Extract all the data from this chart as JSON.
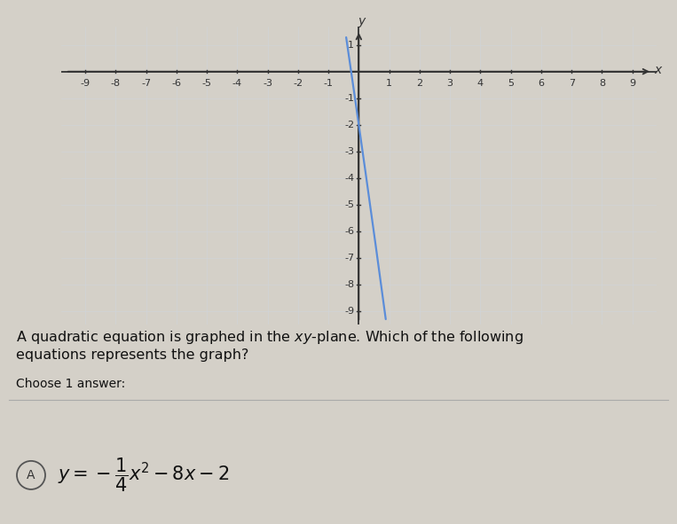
{
  "a": -0.25,
  "b": -8,
  "c": -2,
  "x_min": -9,
  "x_max": 9,
  "y_min": -9,
  "y_max": 1,
  "curve_color": "#5b8dd9",
  "axis_color": "#333333",
  "grid_color_major": "#b0b8c0",
  "grid_color_minor": "#d0d5da",
  "graph_bg_color": "#dde4ea",
  "page_bg_color": "#d4d0c8",
  "text_bg_color": "#ccc8c0",
  "tick_label_fontsize": 8,
  "curve_linewidth": 1.6,
  "question_text": "A quadratic equation is graphed in the xy-plane. Which of the following\nequations represents the graph?",
  "choose_text": "Choose 1 answer:",
  "answer_label": "A"
}
